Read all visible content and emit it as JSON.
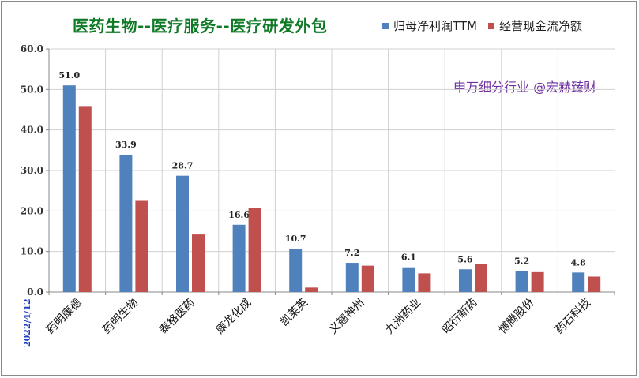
{
  "chart_data": {
    "type": "bar",
    "title": "医药生物--医疗服务--医疗研发外包",
    "categories": [
      "药明康德",
      "药明生物",
      "泰格医药",
      "康龙化成",
      "凯莱英",
      "义翘神州",
      "九洲药业",
      "昭衍新药",
      "博腾股份",
      "药石科技"
    ],
    "series": [
      {
        "name": "归母净利润TTM",
        "color": "#4f81bd",
        "values": [
          51.0,
          33.9,
          28.7,
          16.6,
          10.7,
          7.2,
          6.1,
          5.6,
          5.2,
          4.8
        ],
        "labels": [
          "51.0",
          "33.9",
          "28.7",
          "16.6",
          "10.7",
          "7.2",
          "6.1",
          "5.6",
          "5.2",
          "4.8"
        ]
      },
      {
        "name": "经营现金流净额",
        "color": "#c0504d",
        "values": [
          45.9,
          22.5,
          14.2,
          20.7,
          1.1,
          6.5,
          4.6,
          7.0,
          4.9,
          3.8
        ]
      }
    ],
    "ylim": [
      0,
      60
    ],
    "yticks": [
      0,
      10,
      20,
      30,
      40,
      50,
      60
    ],
    "ytick_labels": [
      "0.0",
      "10.0",
      "20.0",
      "30.0",
      "40.0",
      "50.0",
      "60.0"
    ],
    "grid": true,
    "legend": "top-right"
  },
  "watermark": "申万细分行业 @宏赫臻财",
  "date": "2022/4/12"
}
